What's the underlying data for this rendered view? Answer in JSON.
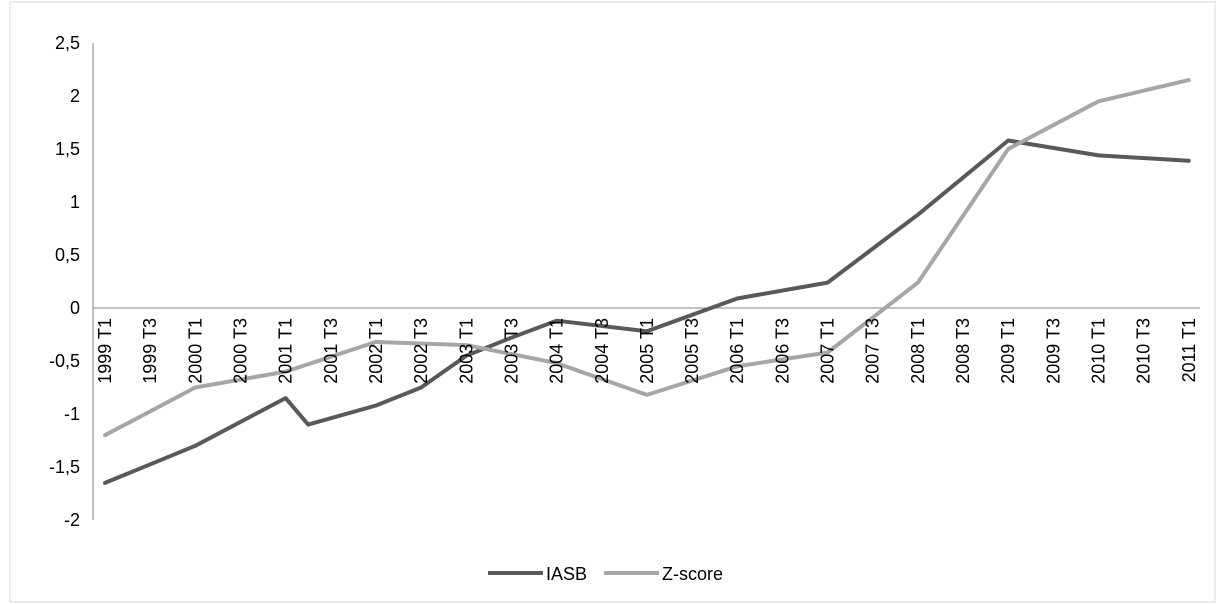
{
  "chart_data": {
    "type": "line",
    "title": "",
    "xlabel": "",
    "ylabel": "",
    "categories": [
      "1999 T1",
      "1999 T3",
      "2000 T1",
      "2000 T3",
      "2001 T1",
      "2001 T3",
      "2002 T1",
      "2002 T3",
      "2003 T1",
      "2003 T3",
      "2004 T1",
      "2004 T3",
      "2005 T1",
      "2005 T3",
      "2006 T1",
      "2006 T3",
      "2007 T1",
      "2007 T3",
      "2008 T1",
      "2008 T3",
      "2009 T1",
      "2009 T3",
      "2010 T1",
      "2010 T3",
      "2011 T1"
    ],
    "y_ticks": [
      "2,5",
      "2",
      "1,5",
      "1",
      "0,5",
      "0",
      "-0,5",
      "-1",
      "-1,5",
      "-2"
    ],
    "ylim": [
      -2,
      2.5
    ],
    "grid": false,
    "legend_position": "bottom",
    "series": [
      {
        "name": "IASB",
        "color": "#595959",
        "x": [
          "1999 T1",
          "2000 T1",
          "2001 T1",
          "2001 T2",
          "2002 T1",
          "2002 T3",
          "2003 T1",
          "2003 T3",
          "2004 T1",
          "2005 T1",
          "2006 T1",
          "2007 T1",
          "2008 T1",
          "2009 T1",
          "2010 T1",
          "2011 T1"
        ],
        "values": [
          -1.65,
          -1.3,
          -0.85,
          -1.1,
          -0.92,
          -0.75,
          -0.45,
          -0.28,
          -0.12,
          -0.22,
          0.09,
          0.24,
          0.88,
          1.58,
          1.44,
          1.39
        ]
      },
      {
        "name": "Z-score",
        "color": "#a6a6a6",
        "x": [
          "1999 T1",
          "2000 T1",
          "2001 T1",
          "2002 T1",
          "2003 T1",
          "2004 T1",
          "2005 T1",
          "2006 T1",
          "2007 T1",
          "2008 T1",
          "2009 T1",
          "2010 T1",
          "2011 T1"
        ],
        "values": [
          -1.2,
          -0.75,
          -0.6,
          -0.32,
          -0.35,
          -0.52,
          -0.82,
          -0.55,
          -0.42,
          0.24,
          1.5,
          1.95,
          2.15
        ]
      }
    ]
  }
}
